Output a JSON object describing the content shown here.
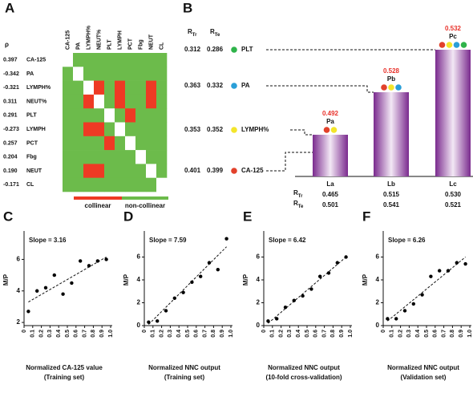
{
  "panel_a": {
    "letter": "A",
    "rho_header": "ρ",
    "variables": [
      "CA-125",
      "PA",
      "LYMPH%",
      "NEUT%",
      "PLT",
      "LYMPH",
      "PCT",
      "Fbg",
      "NEUT",
      "CL"
    ],
    "rho": [
      "0.397",
      "-0.342",
      "-0.321",
      "0.311",
      "0.291",
      "-0.273",
      "0.257",
      "0.204",
      "0.190",
      "-0.171"
    ],
    "collinear": [
      [
        null,
        0,
        0,
        0,
        0,
        0,
        0,
        0,
        0,
        0
      ],
      [
        0,
        null,
        0,
        0,
        0,
        0,
        0,
        0,
        0,
        0
      ],
      [
        0,
        0,
        null,
        1,
        0,
        1,
        0,
        0,
        1,
        0
      ],
      [
        0,
        0,
        1,
        null,
        0,
        1,
        0,
        0,
        1,
        0
      ],
      [
        0,
        0,
        0,
        0,
        null,
        0,
        1,
        0,
        0,
        0
      ],
      [
        0,
        0,
        1,
        1,
        0,
        null,
        0,
        0,
        0,
        0
      ],
      [
        0,
        0,
        0,
        0,
        1,
        0,
        null,
        0,
        0,
        0
      ],
      [
        0,
        0,
        0,
        0,
        0,
        0,
        0,
        null,
        0,
        0
      ],
      [
        0,
        0,
        1,
        1,
        0,
        0,
        0,
        0,
        null,
        0
      ],
      [
        0,
        0,
        0,
        0,
        0,
        0,
        0,
        0,
        0,
        null
      ]
    ],
    "colors": {
      "collinear": "#ee3a24",
      "non_collinear": "#6cbb4b",
      "diagonal": "#ffffff"
    },
    "legend": {
      "collinear": "collinear",
      "non_collinear": "non-collinear"
    }
  },
  "panel_b": {
    "letter": "B",
    "r_tr": {
      "main": "R",
      "sub": "Tr"
    },
    "r_te": {
      "main": "R",
      "sub": "Te"
    },
    "variables": [
      {
        "name": "PLT",
        "r_tr": "0.312",
        "r_te": "0.286",
        "color": "#2fb34a"
      },
      {
        "name": "PA",
        "r_tr": "0.363",
        "r_te": "0.332",
        "color": "#2a9fd8"
      },
      {
        "name": "LYMPH%",
        "r_tr": "0.353",
        "r_te": "0.352",
        "color": "#f3e52b"
      },
      {
        "name": "CA-125",
        "r_tr": "0.401",
        "r_te": "0.399",
        "color": "#e2412b"
      }
    ],
    "models": [
      {
        "name": "La",
        "point": "Pa",
        "value": "0.492",
        "members": [
          3,
          2
        ],
        "r_tr": "0.465",
        "r_te": "0.501"
      },
      {
        "name": "Lb",
        "point": "Pb",
        "value": "0.528",
        "members": [
          3,
          2,
          1
        ],
        "r_tr": "0.515",
        "r_te": "0.541"
      },
      {
        "name": "Lc",
        "point": "Pc",
        "value": "0.532",
        "members": [
          3,
          2,
          1,
          0
        ],
        "r_tr": "0.530",
        "r_te": "0.521"
      }
    ]
  },
  "chart_data": [
    {
      "type": "scatter",
      "letter": "C",
      "annotation": "Slope = 3.16",
      "xlabel": [
        "Normalized CA-125 value",
        "(Training set)"
      ],
      "ylabel": "M/P",
      "color": "#000000",
      "x": [
        0.05,
        0.15,
        0.25,
        0.35,
        0.45,
        0.55,
        0.65,
        0.75,
        0.85,
        0.95
      ],
      "values": [
        2.7,
        4.0,
        4.2,
        5.0,
        3.8,
        4.5,
        5.9,
        5.6,
        5.9,
        6.0
      ],
      "trend": {
        "x": [
          0.05,
          0.95
        ],
        "y": [
          3.3,
          6.15
        ]
      },
      "xlim": [
        0,
        1
      ],
      "ylim": [
        1.8,
        7.6
      ],
      "xticks": [
        0,
        0.1,
        0.2,
        0.3,
        0.4,
        0.5,
        0.6,
        0.7,
        0.8,
        0.9,
        {
          "value": 1,
          "label": "1.0"
        }
      ],
      "yticks": [
        2,
        4,
        6
      ]
    },
    {
      "type": "scatter",
      "letter": "D",
      "annotation": "Slope = 7.59",
      "xlabel": [
        "Normalized NNC output",
        "(Training set)"
      ],
      "ylabel": "M/P",
      "color": "#000000",
      "x": [
        0.05,
        0.15,
        0.25,
        0.35,
        0.45,
        0.55,
        0.65,
        0.75,
        0.85,
        0.95
      ],
      "values": [
        0.3,
        0.4,
        1.3,
        2.4,
        2.9,
        3.8,
        4.3,
        5.5,
        4.9,
        7.6
      ],
      "trend": {
        "x": [
          0.05,
          0.95
        ],
        "y": [
          0.1,
          6.9
        ]
      },
      "xlim": [
        0,
        1
      ],
      "ylim": [
        0,
        8
      ],
      "xticks": [
        0,
        0.1,
        0.2,
        0.3,
        0.4,
        0.5,
        0.6,
        0.7,
        0.8,
        0.9,
        {
          "value": 1,
          "label": "1.0"
        }
      ],
      "yticks": [
        0,
        2,
        4,
        6
      ]
    },
    {
      "type": "scatter",
      "letter": "E",
      "annotation": "Slope = 6.42",
      "xlabel": [
        "Normalized NNC output",
        "(10-fold cross-validation)"
      ],
      "ylabel": "M/P",
      "color": "#000000",
      "x": [
        0.05,
        0.15,
        0.25,
        0.35,
        0.45,
        0.55,
        0.65,
        0.75,
        0.85,
        0.95
      ],
      "values": [
        0.4,
        0.6,
        1.6,
        2.2,
        2.6,
        3.2,
        4.3,
        4.6,
        5.5,
        6.0
      ],
      "trend": {
        "x": [
          0.05,
          0.95
        ],
        "y": [
          0.2,
          6.0
        ]
      },
      "xlim": [
        0,
        1
      ],
      "ylim": [
        0,
        8
      ],
      "xticks": [
        0,
        0.1,
        0.2,
        0.3,
        0.4,
        0.5,
        0.6,
        0.7,
        0.8,
        0.9,
        {
          "value": 1,
          "label": "1.0"
        }
      ],
      "yticks": [
        0,
        2,
        4,
        6
      ]
    },
    {
      "type": "scatter",
      "letter": "F",
      "annotation": "Slope = 6.26",
      "xlabel": [
        "Normalized NNC output",
        "(Validation set)"
      ],
      "ylabel": "M/P",
      "color": "#000000",
      "x": [
        0.05,
        0.15,
        0.25,
        0.35,
        0.45,
        0.55,
        0.65,
        0.75,
        0.85,
        0.95
      ],
      "values": [
        0.6,
        0.6,
        1.3,
        1.9,
        2.7,
        4.3,
        4.8,
        4.8,
        5.5,
        5.4
      ],
      "trend": {
        "x": [
          0.05,
          0.95
        ],
        "y": [
          0.4,
          6.0
        ]
      },
      "xlim": [
        0,
        1
      ],
      "ylim": [
        0,
        8
      ],
      "xticks": [
        0,
        0.1,
        0.2,
        0.3,
        0.4,
        0.5,
        0.6,
        0.7,
        0.8,
        0.9,
        {
          "value": 1,
          "label": "1.0"
        }
      ],
      "yticks": [
        0,
        2,
        4,
        6
      ]
    }
  ]
}
